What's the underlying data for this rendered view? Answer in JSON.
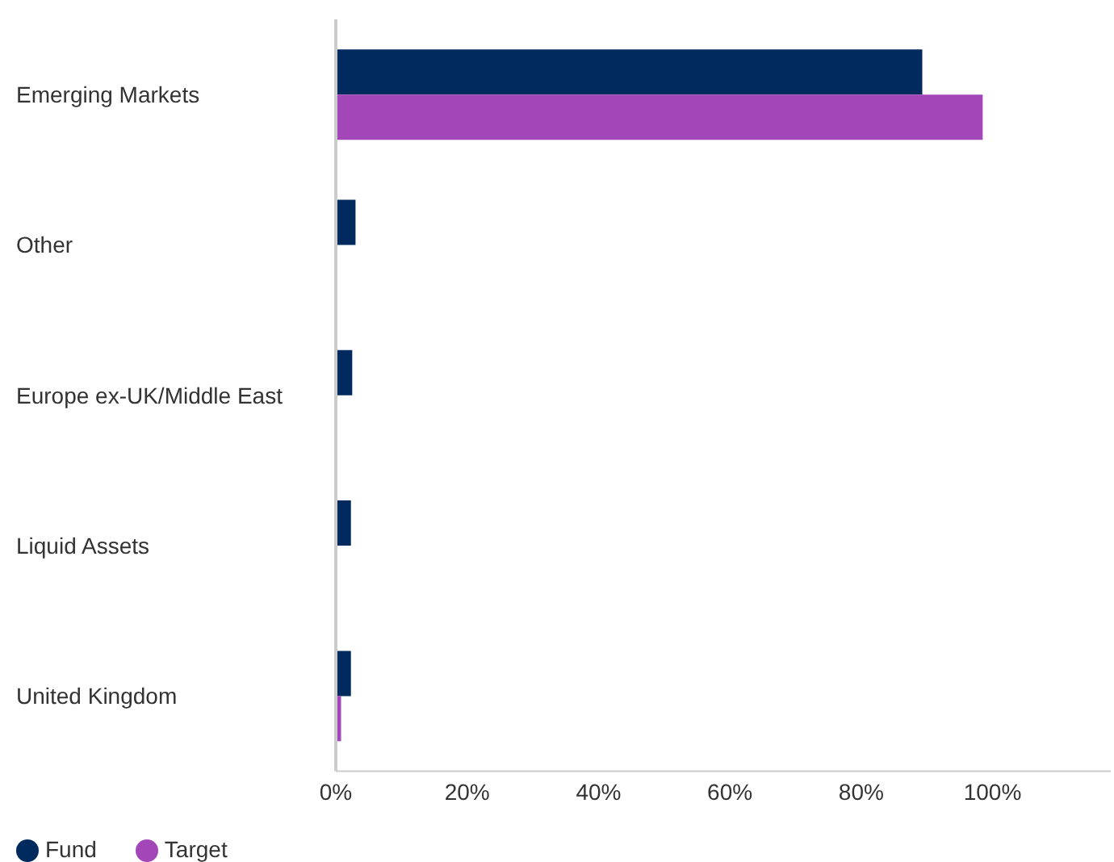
{
  "chart_data": {
    "type": "bar",
    "orientation": "horizontal",
    "categories": [
      "Emerging Markets",
      "Other",
      "Europe ex-UK/Middle East",
      "Liquid Assets",
      "United Kingdom"
    ],
    "series": [
      {
        "name": "Fund",
        "color": "#002a5e",
        "values": [
          89.3,
          3.0,
          2.5,
          2.3,
          2.3
        ]
      },
      {
        "name": "Target",
        "color": "#a347b8",
        "values": [
          98.5,
          null,
          null,
          null,
          0.8
        ]
      }
    ],
    "xlim": [
      0,
      118
    ],
    "xticks": [
      {
        "value": 0,
        "label": "0%"
      },
      {
        "value": 20,
        "label": "20%"
      },
      {
        "value": 40,
        "label": "40%"
      },
      {
        "value": 60,
        "label": "60%"
      },
      {
        "value": 80,
        "label": "80%"
      },
      {
        "value": 100,
        "label": "100%"
      }
    ],
    "grid": false,
    "legend": "bottom left"
  }
}
